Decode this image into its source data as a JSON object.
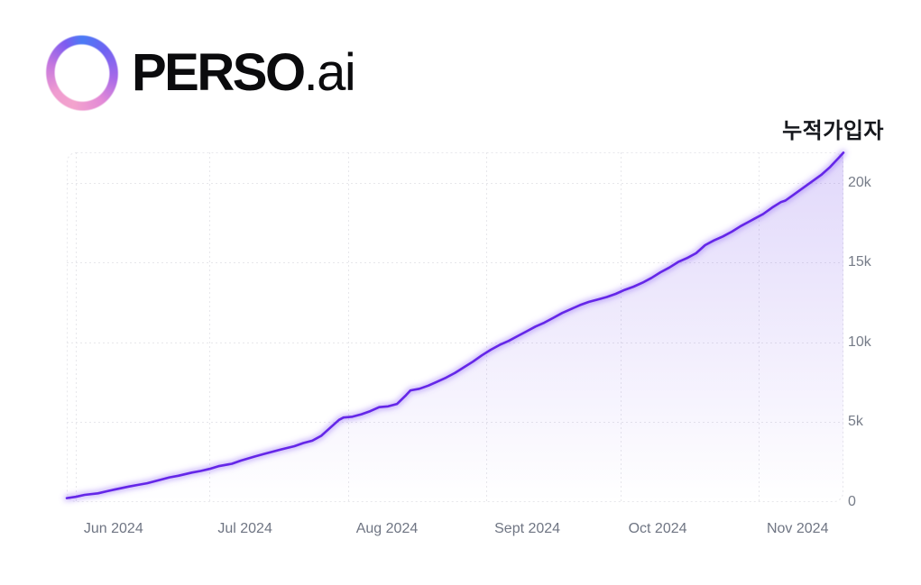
{
  "header": {
    "brand_name": "PERSO",
    "brand_suffix": ".ai",
    "logo_icon": "perso-gradient-ring-logo",
    "logo_gradient": [
      "#4b7bf5",
      "#7d5cf0",
      "#c577de",
      "#f3a3cd"
    ]
  },
  "chart_data": {
    "type": "area",
    "title": "누적가입자",
    "series_name": "누적가입자 (cumulative subscribers)",
    "line_color": "#6426e8",
    "glow_color": "#8a5cf5",
    "fill_color_top": "rgba(104,60,232,0.20)",
    "fill_color_bottom": "rgba(104,60,232,0)",
    "grid": "dashed",
    "legend": "none",
    "x_axis": "date (day offset from 2024-05-30)",
    "x_range_days": [
      0,
      174
    ],
    "ylim": [
      0,
      21920
    ],
    "yticks": [
      {
        "label": "0",
        "value": 0
      },
      {
        "label": "5k",
        "value": 5000
      },
      {
        "label": "10k",
        "value": 10000
      },
      {
        "label": "15k",
        "value": 15000
      },
      {
        "label": "20k",
        "value": 20000
      }
    ],
    "xticks": [
      {
        "label": "Jun 2024",
        "day": 2
      },
      {
        "label": "Jul 2024",
        "day": 32
      },
      {
        "label": "Aug 2024",
        "day": 63
      },
      {
        "label": "Sept 2024",
        "day": 94
      },
      {
        "label": "Oct 2024",
        "day": 124
      },
      {
        "label": "Nov 2024",
        "day": 155
      }
    ],
    "points": [
      [
        0,
        250
      ],
      [
        2,
        330
      ],
      [
        4,
        450
      ],
      [
        7,
        550
      ],
      [
        9,
        680
      ],
      [
        11,
        800
      ],
      [
        14,
        980
      ],
      [
        16,
        1080
      ],
      [
        18,
        1180
      ],
      [
        21,
        1400
      ],
      [
        23,
        1550
      ],
      [
        25,
        1650
      ],
      [
        28,
        1850
      ],
      [
        30,
        1950
      ],
      [
        32,
        2080
      ],
      [
        34,
        2250
      ],
      [
        37,
        2400
      ],
      [
        39,
        2600
      ],
      [
        42,
        2850
      ],
      [
        44,
        3000
      ],
      [
        46,
        3150
      ],
      [
        48,
        3300
      ],
      [
        51,
        3500
      ],
      [
        53,
        3700
      ],
      [
        55,
        3850
      ],
      [
        57,
        4150
      ],
      [
        59,
        4650
      ],
      [
        61,
        5150
      ],
      [
        62,
        5300
      ],
      [
        64,
        5350
      ],
      [
        66,
        5500
      ],
      [
        68,
        5700
      ],
      [
        70,
        5950
      ],
      [
        72,
        6000
      ],
      [
        74,
        6150
      ],
      [
        76,
        6700
      ],
      [
        77,
        7000
      ],
      [
        79,
        7100
      ],
      [
        81,
        7300
      ],
      [
        83,
        7550
      ],
      [
        85,
        7800
      ],
      [
        87,
        8100
      ],
      [
        89,
        8450
      ],
      [
        91,
        8800
      ],
      [
        93,
        9200
      ],
      [
        95,
        9550
      ],
      [
        97,
        9850
      ],
      [
        99,
        10100
      ],
      [
        101,
        10400
      ],
      [
        103,
        10700
      ],
      [
        105,
        11000
      ],
      [
        107,
        11250
      ],
      [
        109,
        11550
      ],
      [
        111,
        11850
      ],
      [
        113,
        12100
      ],
      [
        115,
        12350
      ],
      [
        117,
        12550
      ],
      [
        119,
        12700
      ],
      [
        121,
        12850
      ],
      [
        123,
        13050
      ],
      [
        125,
        13300
      ],
      [
        127,
        13500
      ],
      [
        129,
        13750
      ],
      [
        131,
        14050
      ],
      [
        133,
        14400
      ],
      [
        135,
        14700
      ],
      [
        137,
        15050
      ],
      [
        139,
        15300
      ],
      [
        141,
        15600
      ],
      [
        143,
        16100
      ],
      [
        145,
        16400
      ],
      [
        147,
        16650
      ],
      [
        149,
        16950
      ],
      [
        151,
        17300
      ],
      [
        153,
        17600
      ],
      [
        154,
        17750
      ],
      [
        156,
        18050
      ],
      [
        158,
        18450
      ],
      [
        160,
        18800
      ],
      [
        161,
        18900
      ],
      [
        163,
        19300
      ],
      [
        165,
        19700
      ],
      [
        167,
        20100
      ],
      [
        169,
        20500
      ],
      [
        171,
        21000
      ],
      [
        173,
        21600
      ],
      [
        174,
        21900
      ]
    ]
  }
}
